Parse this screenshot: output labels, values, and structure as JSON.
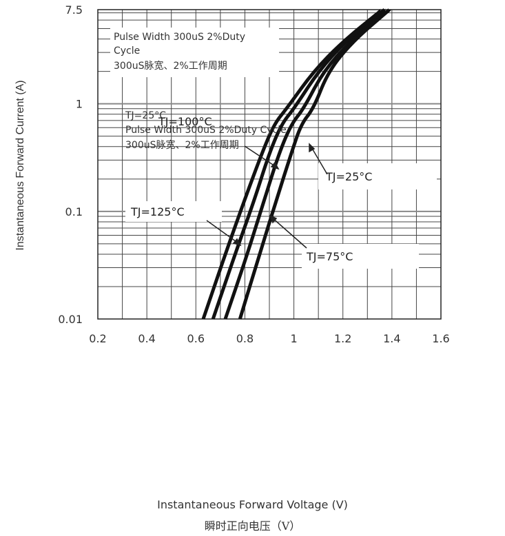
{
  "chart_data": {
    "type": "line",
    "xlabel": "Instantaneous Forward Voltage (V)",
    "xlabel_cn": "瞬时正向电压（V）",
    "ylabel": "Instantaneous Forward Current (A)",
    "x_scale": "linear",
    "y_scale": "log",
    "xlim": [
      0.2,
      1.6
    ],
    "ylim": [
      0.01,
      7.5
    ],
    "x_ticks": [
      "0.2",
      "0.4",
      "0.6",
      "0.8",
      "1",
      "1.2",
      "1.4",
      "1.6"
    ],
    "x_tick_values": [
      0.2,
      0.4,
      0.6,
      0.8,
      1.0,
      1.2,
      1.4,
      1.6
    ],
    "y_ticks": [
      "0.01",
      "0.1",
      "1",
      "7.5"
    ],
    "y_tick_values": [
      0.01,
      0.1,
      1,
      7.5
    ],
    "grid": true,
    "series": [
      {
        "name": "TJ=125°C",
        "x": [
          0.63,
          0.72,
          0.8,
          0.87,
          0.92,
          0.97,
          1.08,
          1.2,
          1.36
        ],
        "y": [
          0.01,
          0.04,
          0.13,
          0.35,
          0.65,
          0.9,
          2.0,
          3.8,
          7.5
        ]
      },
      {
        "name": "TJ=100°C",
        "x": [
          0.67,
          0.76,
          0.84,
          0.9,
          0.95,
          1.0,
          1.1,
          1.21,
          1.37
        ],
        "y": [
          0.01,
          0.04,
          0.13,
          0.35,
          0.65,
          0.9,
          2.0,
          3.8,
          7.5
        ]
      },
      {
        "name": "TJ=75°C",
        "x": [
          0.72,
          0.81,
          0.88,
          0.94,
          0.99,
          1.04,
          1.12,
          1.23,
          1.38
        ],
        "y": [
          0.01,
          0.04,
          0.13,
          0.35,
          0.65,
          0.9,
          2.0,
          3.8,
          7.5
        ]
      },
      {
        "name": "TJ=25°C",
        "x": [
          0.78,
          0.86,
          0.93,
          0.99,
          1.03,
          1.08,
          1.14,
          1.24,
          1.39
        ],
        "y": [
          0.01,
          0.04,
          0.13,
          0.35,
          0.65,
          0.9,
          2.0,
          3.8,
          7.5
        ]
      }
    ],
    "annotations": {
      "top_note": [
        "Pulse Width 300uS 2%Duty",
        "Cycle",
        "300uS脉宽、2%工作周期"
      ],
      "mid_note": [
        "TJ=25°C",
        "Pulse Width 300uS 2%Duty Cycle",
        "300uS脉宽、2%工作周期"
      ],
      "label_tj100": "TJ=100°C",
      "label_tj25": "TJ=25°C",
      "label_tj125": "TJ=125°C",
      "label_tj75": "TJ=75°C"
    }
  }
}
